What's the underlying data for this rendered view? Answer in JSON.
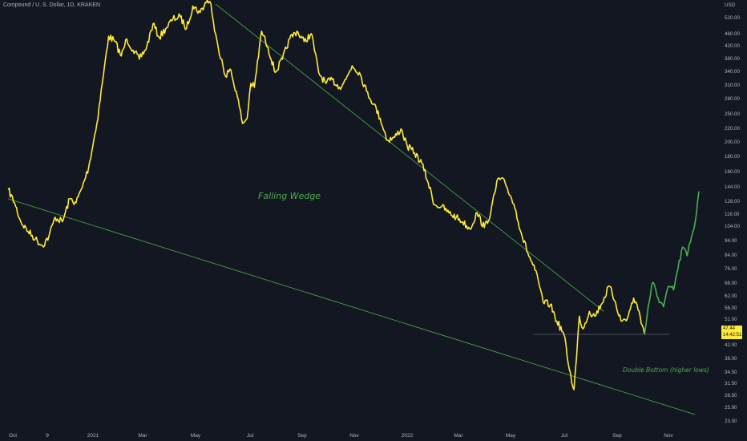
{
  "header": {
    "symbol_title": "Compound / U. S. Dollar, 1D, KRAKEN"
  },
  "price_tag": {
    "price": "47.44",
    "countdown": "14:42:51"
  },
  "annotations": {
    "falling_wedge": "Falling Wedge",
    "double_bottom": "Double Bottom (higher lows)"
  },
  "colors": {
    "background": "#131722",
    "price_line": "#ffeb3b",
    "projection_line": "#4caf50",
    "trendline": "#4caf50",
    "annotation": "#4caf50",
    "axis_text": "#b2b5be",
    "support_line": "#787b86"
  },
  "chart_data": {
    "type": "line",
    "title": "Compound / U. S. Dollar, 1D, KRAKEN",
    "y_unit": "USD",
    "y_scale": "log",
    "ylim": [
      21.5,
      640
    ],
    "grid": false,
    "x_ticks": [
      "Oct",
      "9",
      "2021",
      "Mar",
      "May",
      "Jul",
      "Sep",
      "Nov",
      "2022",
      "Mar",
      "May",
      "Jul",
      "Sep",
      "Nov"
    ],
    "y_ticks": [
      "USD",
      "520.00",
      "460.00",
      "420.00",
      "380.00",
      "340.00",
      "310.00",
      "280.00",
      "250.00",
      "220.00",
      "200.00",
      "180.00",
      "160.00",
      "144.00",
      "128.00",
      "116.00",
      "104.00",
      "94.00",
      "84.00",
      "76.00",
      "68.00",
      "62.00",
      "56.00",
      "51.00",
      "47.44",
      "42.00",
      "38.00",
      "34.50",
      "31.50",
      "28.50",
      "25.90",
      "23.50"
    ],
    "series": [
      {
        "style": "yellow",
        "x": [
          "2020-09-28",
          "2020-10-05",
          "2020-10-12",
          "2020-10-20",
          "2020-10-28",
          "2020-11-05",
          "2020-11-12",
          "2020-11-19",
          "2020-11-27",
          "2020-12-05",
          "2020-12-12",
          "2020-12-19",
          "2020-12-26",
          "2021-01-04",
          "2021-01-10",
          "2021-01-17",
          "2021-01-24",
          "2021-01-31",
          "2021-02-06",
          "2021-02-13",
          "2021-02-20",
          "2021-02-28",
          "2021-03-07",
          "2021-03-14",
          "2021-03-21",
          "2021-03-29",
          "2021-04-06",
          "2021-04-13",
          "2021-04-20",
          "2021-04-28",
          "2021-05-06",
          "2021-05-10",
          "2021-05-14",
          "2021-05-18",
          "2021-05-22",
          "2021-05-26",
          "2021-05-31",
          "2021-06-07",
          "2021-06-14",
          "2021-06-19",
          "2021-06-23",
          "2021-06-27",
          "2021-07-05",
          "2021-07-12",
          "2021-07-20",
          "2021-07-28",
          "2021-08-05",
          "2021-08-13",
          "2021-08-21",
          "2021-08-29",
          "2021-09-06",
          "2021-09-14",
          "2021-09-21",
          "2021-09-29",
          "2021-10-06",
          "2021-10-13",
          "2021-10-21",
          "2021-10-29",
          "2021-11-06",
          "2021-11-13",
          "2021-11-21",
          "2021-11-29",
          "2021-12-06",
          "2021-12-13",
          "2021-12-21",
          "2021-12-29",
          "2022-01-05",
          "2022-01-12",
          "2022-01-20",
          "2022-01-28",
          "2022-02-05",
          "2022-02-12",
          "2022-02-20",
          "2022-02-28",
          "2022-03-08",
          "2022-03-15",
          "2022-03-23",
          "2022-03-31",
          "2022-04-06",
          "2022-04-12",
          "2022-04-18",
          "2022-04-25",
          "2022-05-03",
          "2022-05-08",
          "2022-05-12",
          "2022-05-20",
          "2022-05-27",
          "2022-06-04",
          "2022-06-10",
          "2022-06-15",
          "2022-06-18",
          "2022-06-21",
          "2022-06-25",
          "2022-07-02",
          "2022-07-08",
          "2022-07-15",
          "2022-07-24",
          "2022-07-31",
          "2022-08-06",
          "2022-08-13",
          "2022-08-20",
          "2022-08-26",
          "2022-09-01"
        ],
        "values": [
          142,
          128,
          110,
          102,
          96,
          91,
          98,
          114,
          110,
          132,
          128,
          145,
          170,
          240,
          330,
          480,
          460,
          410,
          470,
          430,
          400,
          440,
          530,
          475,
          510,
          550,
          560,
          510,
          610,
          580,
          640,
          620,
          500,
          440,
          400,
          350,
          370,
          310,
          240,
          250,
          330,
          320,
          500,
          440,
          360,
          400,
          470,
          500,
          460,
          490,
          360,
          330,
          340,
          320,
          340,
          380,
          360,
          310,
          280,
          250,
          210,
          215,
          230,
          200,
          190,
          175,
          150,
          126,
          124,
          118,
          114,
          110,
          104,
          118,
          105,
          118,
          155,
          150,
          135,
          120,
          100,
          86,
          75,
          66,
          58,
          57,
          50,
          45,
          34,
          29,
          38,
          52,
          47,
          54,
          52,
          57,
          66,
          58,
          50,
          51,
          60,
          54,
          45
        ]
      },
      {
        "style": "green",
        "x": [
          "2022-09-01",
          "2022-09-05",
          "2022-09-10",
          "2022-09-16",
          "2022-09-22",
          "2022-09-28",
          "2022-10-03",
          "2022-10-08",
          "2022-10-13",
          "2022-10-18",
          "2022-10-23",
          "2022-10-27",
          "2022-10-31"
        ],
        "values": [
          45,
          56,
          68,
          60,
          56,
          66,
          64,
          76,
          90,
          84,
          98,
          110,
          140
        ]
      }
    ],
    "trendlines": [
      {
        "x": [
          "2020-09-28",
          "2022-10-27"
        ],
        "values": [
          132,
          23.8
        ]
      },
      {
        "x": [
          "2021-05-15",
          "2022-07-18"
        ],
        "values": [
          620,
          54
        ]
      },
      {
        "x": [
          "2022-05-01",
          "2022-09-28"
        ],
        "values": [
          45,
          45
        ],
        "style": "support"
      }
    ]
  }
}
